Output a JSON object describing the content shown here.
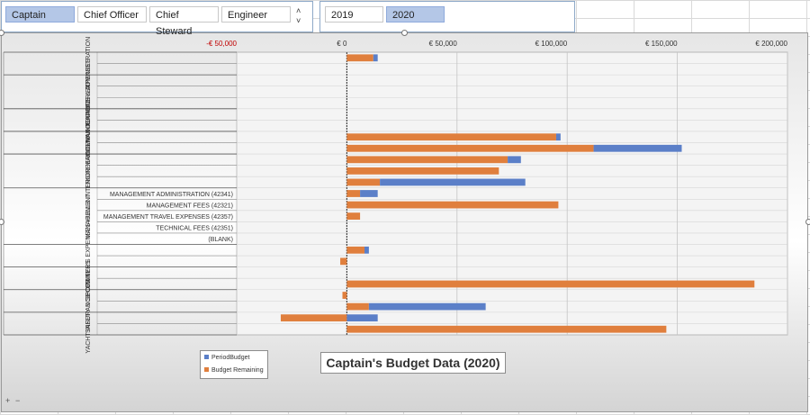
{
  "slicer_roles": {
    "items": [
      {
        "label": "Captain",
        "selected": true
      },
      {
        "label": "Chief Officer",
        "selected": false
      },
      {
        "label": "Chief Steward",
        "selected": false
      },
      {
        "label": "Engineer",
        "selected": false
      }
    ],
    "scroll_up": "˄",
    "scroll_down": "˅"
  },
  "slicer_years": {
    "items": [
      {
        "label": "2019",
        "selected": false
      },
      {
        "label": "2020",
        "selected": true
      }
    ]
  },
  "colors": {
    "period_budget": "#5b7fc8",
    "budget_remaining": "#e07f3d"
  },
  "zoom": {
    "plus": "+",
    "minus": "−"
  },
  "chart_data": {
    "type": "bar",
    "orientation": "horizontal",
    "title": "Captain's Budget Data (2020)",
    "xlim": [
      -50000,
      200000
    ],
    "x_ticks": [
      {
        "value": -50000,
        "label": "-€ 50,000",
        "negative": true
      },
      {
        "value": 0,
        "label": "€ 0",
        "negative": false
      },
      {
        "value": 50000,
        "label": "€ 50,000",
        "negative": false
      },
      {
        "value": 100000,
        "label": "€ 100,000",
        "negative": false
      },
      {
        "value": 150000,
        "label": "€ 150,000",
        "negative": false
      },
      {
        "value": 200000,
        "label": "€ 200,000",
        "negative": false
      }
    ],
    "legend": [
      {
        "name": "PeriodBudget",
        "color": "#5b7fc8"
      },
      {
        "name": "Budget Remaining",
        "color": "#e07f3d"
      }
    ],
    "legend_position": "bottom-left",
    "groups": [
      {
        "name": "ADMINISTRATION",
        "rows": 2
      },
      {
        "name": "CHARTER EXPENSES",
        "rows": 3
      },
      {
        "name": "COMMUNICATIONS & IT",
        "rows": 2
      },
      {
        "name": "ENGINEERING MAINTENANCE",
        "rows": 2
      },
      {
        "name": "HULL & INTERIOR MAINTENANCE",
        "rows": 3
      },
      {
        "name": "MANAGEMENT",
        "rows": 5
      },
      {
        "name": "OWNER'S EXPENSES",
        "rows": 2
      },
      {
        "name": "PORT FEES",
        "rows": 2
      },
      {
        "name": "SAFETY & SECURITY",
        "rows": 2
      },
      {
        "name": "YACHT INSURANCE",
        "rows": 2
      }
    ],
    "categories": [
      "",
      "",
      "",
      "",
      "",
      "",
      "",
      "",
      "",
      "",
      "",
      "",
      "MANAGEMENT ADMINISTRATION (42341)",
      "MANAGEMENT FEES (42321)",
      "MANAGEMENT TRAVEL EXPENSES (42357)",
      "TECHNICAL FEES (42351)",
      "(BLANK)",
      "",
      "",
      "",
      "",
      "",
      "",
      "",
      ""
    ],
    "series": [
      {
        "name": "Budget Remaining",
        "values": [
          12000,
          0,
          0,
          0,
          0,
          0,
          0,
          95000,
          112000,
          73000,
          69000,
          15000,
          6000,
          96000,
          6000,
          0,
          0,
          8000,
          -3000,
          0,
          185000,
          -2000,
          10000,
          -30000,
          145000
        ]
      },
      {
        "name": "PeriodBudget",
        "values": [
          2000,
          0,
          0,
          0,
          0,
          0,
          0,
          2000,
          40000,
          6000,
          0,
          66000,
          8000,
          0,
          0,
          0,
          0,
          2000,
          0,
          0,
          0,
          0,
          53000,
          14000,
          0
        ]
      }
    ]
  }
}
